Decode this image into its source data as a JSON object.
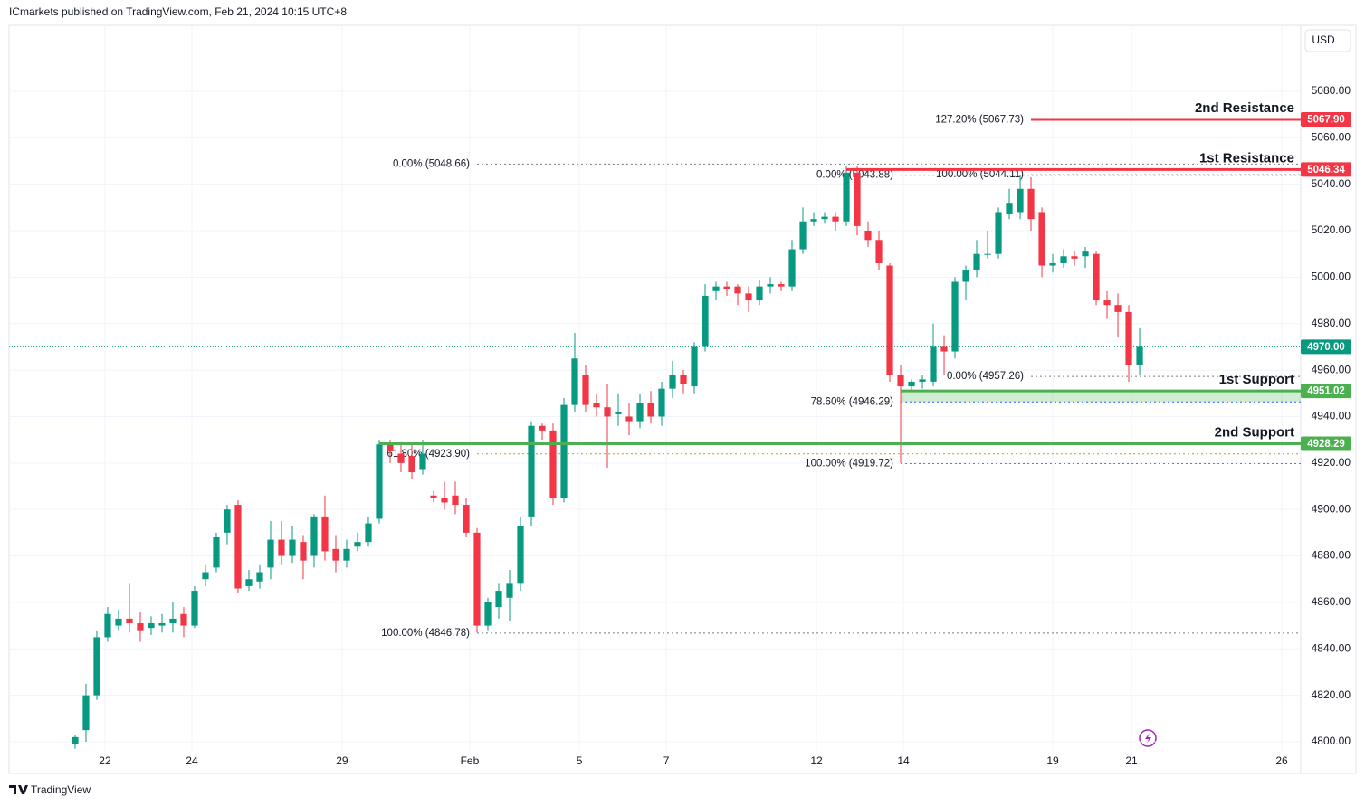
{
  "header": {
    "title": "ICmarkets published on TradingView.com, Feb 21, 2024 10:15 UTC+8",
    "currency": "USD",
    "brand": "TradingView"
  },
  "chart_data": {
    "type": "candlestick",
    "up_color": "#089981",
    "down_color": "#f23645",
    "xlim": [
      -6.08,
      112.83
    ],
    "xticks": [
      {
        "value": 2.75,
        "label": "22"
      },
      {
        "value": 10.75,
        "label": "24"
      },
      {
        "value": 24.58,
        "label": "29"
      },
      {
        "value": 36.33,
        "label": "Feb"
      },
      {
        "value": 46.42,
        "label": "5"
      },
      {
        "value": 54.42,
        "label": "7"
      },
      {
        "value": 68.25,
        "label": "12"
      },
      {
        "value": 76.25,
        "label": "14"
      },
      {
        "value": 90,
        "label": "19"
      },
      {
        "value": 97.25,
        "label": "21"
      },
      {
        "value": 111.08,
        "label": "26"
      }
    ],
    "ylim": [
      4796.1,
      5108.4
    ],
    "yticks": [
      {
        "value": 4800,
        "label": "4800.00"
      },
      {
        "value": 4820,
        "label": "4820.00"
      },
      {
        "value": 4840,
        "label": "4840.00"
      },
      {
        "value": 4860,
        "label": "4860.00"
      },
      {
        "value": 4880,
        "label": "4880.00"
      },
      {
        "value": 4900,
        "label": "4900.00"
      },
      {
        "value": 4920,
        "label": "4920.00"
      },
      {
        "value": 4940,
        "label": "4940.00"
      },
      {
        "value": 4960,
        "label": "4960.00"
      },
      {
        "value": 4980,
        "label": "4980.00"
      },
      {
        "value": 5000,
        "label": "5000.00"
      },
      {
        "value": 5020,
        "label": "5020.00"
      },
      {
        "value": 5040,
        "label": "5040.00"
      },
      {
        "value": 5060,
        "label": "5060.00"
      },
      {
        "value": 5080,
        "label": "5080.00"
      }
    ],
    "open": [
      4799,
      4805,
      4820,
      4845,
      4850,
      4853,
      4851,
      4849,
      4850,
      4851,
      4855,
      4850,
      4870,
      4875,
      4890,
      4902,
      4867,
      4869,
      4875,
      4887,
      4880,
      4886,
      4880,
      4897,
      4883,
      4878,
      4884,
      4886,
      4896,
      4928,
      4924,
      4923,
      4917,
      4906,
      4905,
      4906,
      4902,
      4890,
      4850,
      4858,
      4862,
      4868,
      4897,
      4936,
      4934,
      4905,
      4945,
      4958,
      4946,
      4944,
      4941,
      4940,
      4938,
      4946,
      4940,
      4952,
      4958,
      4953,
      4970,
      4994,
      4996,
      4996,
      4993,
      4990,
      4996,
      4997,
      4996,
      5012,
      5024,
      5025,
      5026,
      5024,
      5045,
      5020,
      5016,
      5005,
      4958,
      4953,
      4955,
      4955,
      4970,
      4968,
      4998,
      5003,
      5010,
      5010,
      5027,
      5028,
      5038,
      5028,
      5005,
      5006,
      5009,
      5009,
      5010,
      4990,
      4988,
      4985,
      4962
    ],
    "high": [
      4803,
      4825,
      4848,
      4858,
      4857,
      4868,
      4856,
      4854,
      4855,
      4860,
      4858,
      4867,
      4876,
      4890,
      4902,
      4904,
      4874,
      4876,
      4895,
      4895,
      4893,
      4889,
      4898,
      4906,
      4889,
      4887,
      4890,
      4897,
      4930,
      4930,
      4929,
      4928,
      4930,
      4908,
      4912,
      4912,
      4905,
      4892,
      4862,
      4868,
      4874,
      4897,
      4938,
      4937,
      4937,
      4948,
      4976,
      4962,
      4950,
      4954,
      4950,
      4946,
      4950,
      4951,
      4955,
      4964,
      4960,
      4972,
      4997,
      4998,
      4998,
      4997,
      4996,
      4999,
      5000,
      4998,
      5016,
      5030,
      5028,
      5028,
      5028,
      5048,
      5048,
      5024,
      5020,
      5006,
      4962,
      4956,
      4958,
      4980,
      4975,
      5000,
      5005,
      5016,
      5020,
      5030,
      5038,
      5044,
      5043,
      5030,
      5010,
      5012,
      5011,
      5013,
      5011,
      4994,
      4993,
      4988,
      4978
    ],
    "low": [
      4797,
      4800,
      4818,
      4843,
      4848,
      4847,
      4843,
      4846,
      4847,
      4847,
      4845,
      4849,
      4867,
      4873,
      4885,
      4864,
      4865,
      4866,
      4870,
      4876,
      4877,
      4870,
      4875,
      4878,
      4873,
      4875,
      4882,
      4884,
      4894,
      4920,
      4916,
      4913,
      4915,
      4903,
      4900,
      4898,
      4888,
      4847,
      4848,
      4853,
      4852,
      4865,
      4893,
      4930,
      4902,
      4903,
      4942,
      4942,
      4940,
      4918,
      4936,
      4932,
      4935,
      4937,
      4936,
      4948,
      4950,
      4950,
      4968,
      4990,
      4992,
      4988,
      4985,
      4988,
      4993,
      4994,
      4994,
      5010,
      5022,
      5023,
      5020,
      5022,
      5018,
      5013,
      5003,
      4955,
      4920,
      4951,
      4952,
      4953,
      4958,
      4965,
      4990,
      5000,
      5008,
      5008,
      5025,
      5025,
      5020,
      5000,
      5002,
      5004,
      5005,
      5004,
      4988,
      4982,
      4974,
      4955,
      4958
    ],
    "close": [
      4802,
      4820,
      4845,
      4855,
      4853,
      4851,
      4848,
      4851,
      4851,
      4853,
      4850,
      4865,
      4873,
      4888,
      4900,
      4866,
      4870,
      4873,
      4887,
      4880,
      4887,
      4878,
      4897,
      4882,
      4878,
      4883,
      4886,
      4894,
      4928,
      4925,
      4920,
      4916,
      4924,
      4905,
      4903,
      4902,
      4890,
      4850,
      4860,
      4865,
      4868,
      4893,
      4936,
      4934,
      4905,
      4945,
      4965,
      4945,
      4944,
      4940,
      4942,
      4938,
      4946,
      4940,
      4952,
      4958,
      4954,
      4970,
      4992,
      4996,
      4995,
      4993,
      4990,
      4996,
      4997,
      4996,
      5012,
      5024,
      5025,
      5026,
      5024,
      5045,
      5022,
      5016,
      5006,
      4958,
      4953,
      4955,
      4956,
      4970,
      4968,
      4998,
      5003,
      5010,
      5010,
      5028,
      5032,
      5038,
      5025,
      5005,
      5006,
      5009,
      5008,
      5011,
      4990,
      4988,
      4985,
      4962,
      4970
    ],
    "last_price": {
      "value": 4970,
      "label": "4970.00",
      "color": "#089981"
    },
    "levels": [
      {
        "name": "2nd Resistance",
        "value": 5067.9,
        "label": "5067.90",
        "color": "#f23645",
        "from": 88
      },
      {
        "name": "1st Resistance",
        "value": 5046.34,
        "label": "5046.34",
        "color": "#f23645",
        "from": 71
      },
      {
        "name": "1st Support",
        "value": 4951.02,
        "label": "4951.02",
        "color": "#4caf50",
        "from": 76
      },
      {
        "name": "2nd Support",
        "value": 4928.29,
        "label": "4928.29",
        "color": "#4caf50",
        "from": 28
      }
    ],
    "support_zone": {
      "from": 76,
      "top": 4951.02,
      "bottom": 4946.29,
      "color": "#4caf50"
    },
    "fib_levels": [
      {
        "label": "0.00% (5048.66)",
        "value": 5048.66,
        "color": "#787b86",
        "from": 37
      },
      {
        "label": "100.00% (4846.78)",
        "value": 4846.78,
        "color": "#787b86",
        "from": 37
      },
      {
        "label": "61.80% (4923.90)",
        "value": 4923.9,
        "color": "#c49a1a",
        "from": 37
      },
      {
        "label": "0.00% (5043.88)",
        "value": 5043.88,
        "color": "#787b86",
        "from": 76
      },
      {
        "label": "78.60% (4946.29)",
        "value": 4946.29,
        "color": "#2962ff",
        "from": 76
      },
      {
        "label": "100.00% (4919.72)",
        "value": 4919.72,
        "color": "#787b86",
        "from": 76
      },
      {
        "label": "100.00% (5044.11)",
        "value": 5044.11,
        "color": "#787b86",
        "from": 88
      },
      {
        "label": "127.20% (5067.73)",
        "value": 5067.73,
        "color": "#2962ff",
        "from": 88
      },
      {
        "label": "0.00% (4957.26)",
        "value": 4957.26,
        "color": "#787b86",
        "from": 88
      }
    ]
  }
}
